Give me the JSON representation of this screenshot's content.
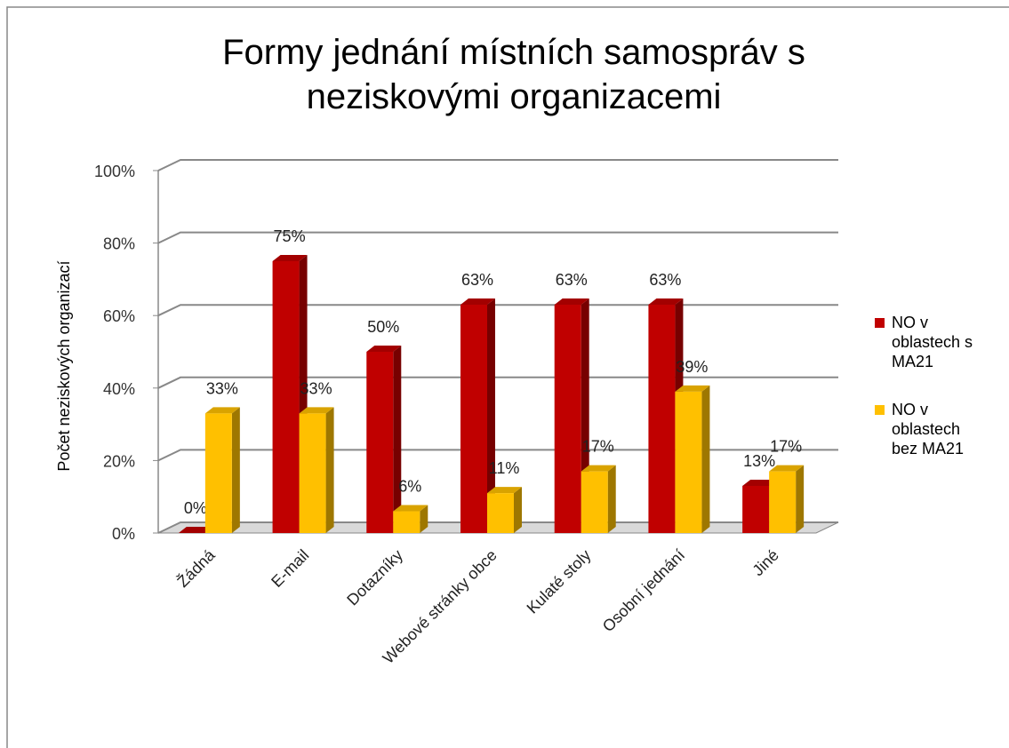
{
  "chart_data": {
    "type": "bar3d",
    "title": [
      "Formy jednání místních samospráv s",
      "neziskovými organizacemi"
    ],
    "ylabel": "Počet neziskových organizací",
    "categories": [
      "Žádná",
      "E-mail",
      "Dotazníky",
      "Webové stránky obce",
      "Kulaté stoly",
      "Osobní jednání",
      "Jiné"
    ],
    "series": [
      {
        "name": "NO v oblastech s MA21",
        "color": "#c00000",
        "values": [
          0,
          75,
          50,
          63,
          63,
          63,
          13
        ],
        "value_labels": [
          "0%",
          "75%",
          "50%",
          "63%",
          "63%",
          "63%",
          "13%"
        ]
      },
      {
        "name": "NO v oblastech bez MA21",
        "color": "#ffc000",
        "values": [
          33,
          33,
          6,
          11,
          17,
          39,
          17
        ],
        "value_labels": [
          "33%",
          "33%",
          "6%",
          "11%",
          "17%",
          "39%",
          "17%"
        ]
      }
    ],
    "ylim": [
      0,
      100
    ],
    "yticks": [
      {
        "value": 0,
        "label": "0%"
      },
      {
        "value": 20,
        "label": "20%"
      },
      {
        "value": 40,
        "label": "40%"
      },
      {
        "value": 60,
        "label": "60%"
      },
      {
        "value": 80,
        "label": "80%"
      },
      {
        "value": 100,
        "label": "100%"
      }
    ],
    "grid": true,
    "legend": "right"
  }
}
